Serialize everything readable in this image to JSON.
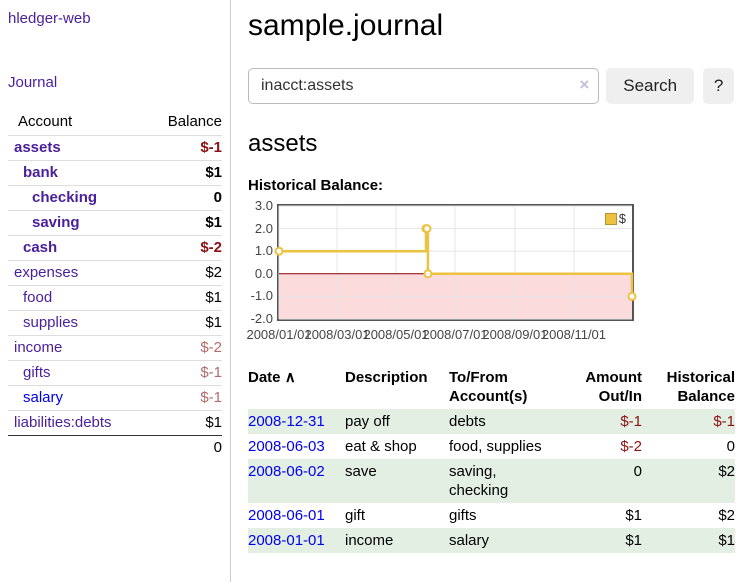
{
  "app": {
    "brand": "hledger-web"
  },
  "sidebar": {
    "nav": {
      "journal_label": "Journal"
    },
    "accounts_table": {
      "headers": {
        "account": "Account",
        "balance": "Balance"
      },
      "rows": [
        {
          "name": "assets",
          "balance": "$-1",
          "depth": 1,
          "bold": true,
          "negative": "strong"
        },
        {
          "name": "bank",
          "balance": "$1",
          "depth": 2,
          "bold": true
        },
        {
          "name": "checking",
          "balance": "0",
          "depth": 3,
          "bold": true
        },
        {
          "name": "saving",
          "balance": "$1",
          "depth": 3,
          "bold": true
        },
        {
          "name": "cash",
          "balance": "$-2",
          "depth": 2,
          "bold": true,
          "negative": "strong"
        },
        {
          "name": "expenses",
          "balance": "$2",
          "depth": 1
        },
        {
          "name": "food",
          "balance": "$1",
          "depth": 2
        },
        {
          "name": "supplies",
          "balance": "$1",
          "depth": 2
        },
        {
          "name": "income",
          "balance": "$-2",
          "depth": 1,
          "negative": "muted"
        },
        {
          "name": "gifts",
          "balance": "$-1",
          "depth": 2,
          "negative": "muted"
        },
        {
          "name": "salary",
          "balance": "$-1",
          "depth": 2,
          "negative": "muted",
          "link_style": "blue"
        },
        {
          "name": "liabilities:debts",
          "balance": "$1",
          "depth": 1
        }
      ],
      "total": "0"
    }
  },
  "header": {
    "title": "sample.journal"
  },
  "search": {
    "value": "inacct:assets",
    "clear_icon": "×",
    "button_label": "Search",
    "help_label": "?"
  },
  "account_page": {
    "title": "assets",
    "chart_label": "Historical Balance:"
  },
  "chart_data": {
    "type": "line",
    "step": true,
    "title": "Historical Balance:",
    "legend_label": "$",
    "legend_position": "top-right",
    "grid": true,
    "x": [
      "2008-01-01",
      "2008-06-01",
      "2008-06-02",
      "2008-06-03",
      "2008-12-31"
    ],
    "y": [
      1,
      2,
      2,
      0,
      -1
    ],
    "xlim": [
      "2008-01-01",
      "2008-12-31"
    ],
    "ylim": [
      -2,
      3
    ],
    "yticks": [
      "3.0",
      "2.0",
      "1.0",
      "0.0",
      "-1.0",
      "-2.0"
    ],
    "ytick_values": [
      3,
      2,
      1,
      0,
      -1,
      -2
    ],
    "xticks": [
      "2008/01/01",
      "2008/03/01",
      "2008/05/01",
      "2008/07/01",
      "2008/09/01",
      "2008/11/01"
    ],
    "colors": {
      "series": "#edc240",
      "marker_fill": "#ffffff",
      "zero_line": "#8b0000",
      "negative_zone": "#fbdbdb",
      "grid": "#e6e6e6",
      "border": "#545454"
    }
  },
  "transactions": {
    "headers": {
      "date": "Date",
      "description": "Description",
      "accounts": "To/From Account(s)",
      "amount": "Amount Out/In",
      "balance": "Historical Balance"
    },
    "sort_icon": "∧",
    "rows": [
      {
        "date": "2008-12-31",
        "description": "pay off",
        "accounts": "debts",
        "amount": "$-1",
        "amount_negative": true,
        "balance": "$-1",
        "balance_negative": true,
        "highlighted": true
      },
      {
        "date": "2008-06-03",
        "description": "eat & shop",
        "accounts": "food, supplies",
        "amount": "$-2",
        "amount_negative": true,
        "balance": "0",
        "balance_negative": false,
        "highlighted": false
      },
      {
        "date": "2008-06-02",
        "description": "save",
        "accounts": "saving, checking",
        "amount": "0",
        "amount_negative": false,
        "balance": "$2",
        "balance_negative": false,
        "highlighted": true
      },
      {
        "date": "2008-06-01",
        "description": "gift",
        "accounts": "gifts",
        "amount": "$1",
        "amount_negative": false,
        "balance": "$2",
        "balance_negative": false,
        "highlighted": false
      },
      {
        "date": "2008-01-01",
        "description": "income",
        "accounts": "salary",
        "amount": "$1",
        "amount_negative": false,
        "balance": "$1",
        "balance_negative": false,
        "highlighted": true
      }
    ]
  }
}
